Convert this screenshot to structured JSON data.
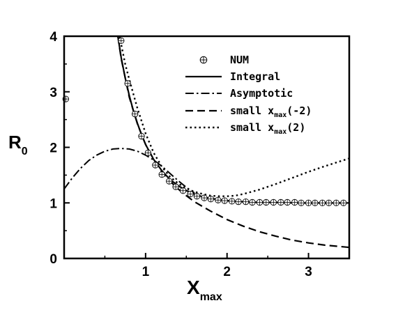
{
  "chart_data": {
    "type": "line",
    "xlabel": "X",
    "xlabel_sub": "max",
    "ylabel": "R",
    "ylabel_sub": "0",
    "xlim": [
      0.0,
      3.5
    ],
    "ylim": [
      0.0,
      4.0
    ],
    "xticks": [
      {
        "v": 1,
        "label": "1"
      },
      {
        "v": 2,
        "label": "2"
      },
      {
        "v": 3,
        "label": "3"
      }
    ],
    "yticks": [
      {
        "v": 0,
        "label": "0"
      },
      {
        "v": 1,
        "label": "1"
      },
      {
        "v": 2,
        "label": "2"
      },
      {
        "v": 3,
        "label": "3"
      },
      {
        "v": 4,
        "label": "4"
      }
    ],
    "grid": false,
    "legend_position": "top-right",
    "series": [
      {
        "name": "NUM",
        "style": "circle-plus-markers",
        "x": [
          0.02,
          0.7,
          0.78,
          0.87,
          0.95,
          1.03,
          1.12,
          1.2,
          1.29,
          1.37,
          1.46,
          1.55,
          1.63,
          1.72,
          1.8,
          1.89,
          1.97,
          2.06,
          2.14,
          2.23,
          2.31,
          2.4,
          2.48,
          2.57,
          2.66,
          2.74,
          2.83,
          2.91,
          3.0,
          3.08,
          3.17,
          3.25,
          3.34,
          3.43
        ],
        "y": [
          2.87,
          3.92,
          3.15,
          2.6,
          2.2,
          1.9,
          1.68,
          1.51,
          1.39,
          1.29,
          1.22,
          1.16,
          1.12,
          1.09,
          1.07,
          1.05,
          1.04,
          1.03,
          1.02,
          1.02,
          1.01,
          1.01,
          1.01,
          1.01,
          1.01,
          1.01,
          1.01,
          1.0,
          1.0,
          1.0,
          1.0,
          1.0,
          1.0,
          1.0
        ]
      },
      {
        "name": "Integral",
        "style": "solid",
        "x": [
          0.66,
          0.7,
          0.75,
          0.8,
          0.85,
          0.9,
          0.95,
          1.0,
          1.1,
          1.2,
          1.3,
          1.4,
          1.5,
          1.6,
          1.7,
          1.8,
          1.9,
          2.0,
          2.2,
          2.4,
          2.6,
          2.8,
          3.0,
          3.2,
          3.5
        ],
        "y": [
          4.0,
          3.62,
          3.25,
          2.93,
          2.66,
          2.43,
          2.23,
          2.05,
          1.78,
          1.58,
          1.42,
          1.31,
          1.22,
          1.16,
          1.11,
          1.08,
          1.06,
          1.04,
          1.02,
          1.01,
          1.01,
          1.0,
          1.0,
          1.0,
          1.0
        ]
      },
      {
        "name": "Asymptotic",
        "style": "dash-dot",
        "x": [
          0.0,
          0.1,
          0.2,
          0.3,
          0.4,
          0.5,
          0.6,
          0.7,
          0.8,
          0.9,
          1.0,
          1.1,
          1.2,
          1.3,
          1.4,
          1.5,
          1.6
        ],
        "y": [
          1.25,
          1.45,
          1.62,
          1.76,
          1.86,
          1.93,
          1.97,
          1.98,
          1.97,
          1.93,
          1.86,
          1.77,
          1.66,
          1.53,
          1.4,
          1.28,
          1.18
        ]
      },
      {
        "name": "small x_max(-2)",
        "style": "dashed",
        "x": [
          0.66,
          0.7,
          0.8,
          0.9,
          1.0,
          1.1,
          1.2,
          1.3,
          1.4,
          1.5,
          1.6,
          1.8,
          2.0,
          2.2,
          2.4,
          2.6,
          2.8,
          3.0,
          3.2,
          3.5
        ],
        "y": [
          4.0,
          3.6,
          2.9,
          2.42,
          2.05,
          1.78,
          1.56,
          1.39,
          1.25,
          1.13,
          1.02,
          0.85,
          0.7,
          0.58,
          0.48,
          0.4,
          0.33,
          0.28,
          0.24,
          0.2
        ]
      },
      {
        "name": "small x_max(2)",
        "style": "dotted",
        "x": [
          0.68,
          0.75,
          0.8,
          0.9,
          1.0,
          1.1,
          1.2,
          1.3,
          1.4,
          1.5,
          1.6,
          1.7,
          1.8,
          1.9,
          2.0,
          2.1,
          2.2,
          2.4,
          2.6,
          2.8,
          3.0,
          3.2,
          3.5
        ],
        "y": [
          4.0,
          3.5,
          3.22,
          2.7,
          2.25,
          1.9,
          1.65,
          1.47,
          1.35,
          1.26,
          1.2,
          1.16,
          1.13,
          1.12,
          1.12,
          1.13,
          1.16,
          1.24,
          1.34,
          1.45,
          1.56,
          1.66,
          1.8
        ]
      }
    ],
    "legend": [
      {
        "label": "NUM",
        "sub": "",
        "tail": ""
      },
      {
        "label": "Integral",
        "sub": "",
        "tail": ""
      },
      {
        "label": "Asymptotic",
        "sub": "",
        "tail": ""
      },
      {
        "label": "small x",
        "sub": "max",
        "tail": "(-2)"
      },
      {
        "label": "small x",
        "sub": "max",
        "tail": "(2)"
      }
    ]
  }
}
